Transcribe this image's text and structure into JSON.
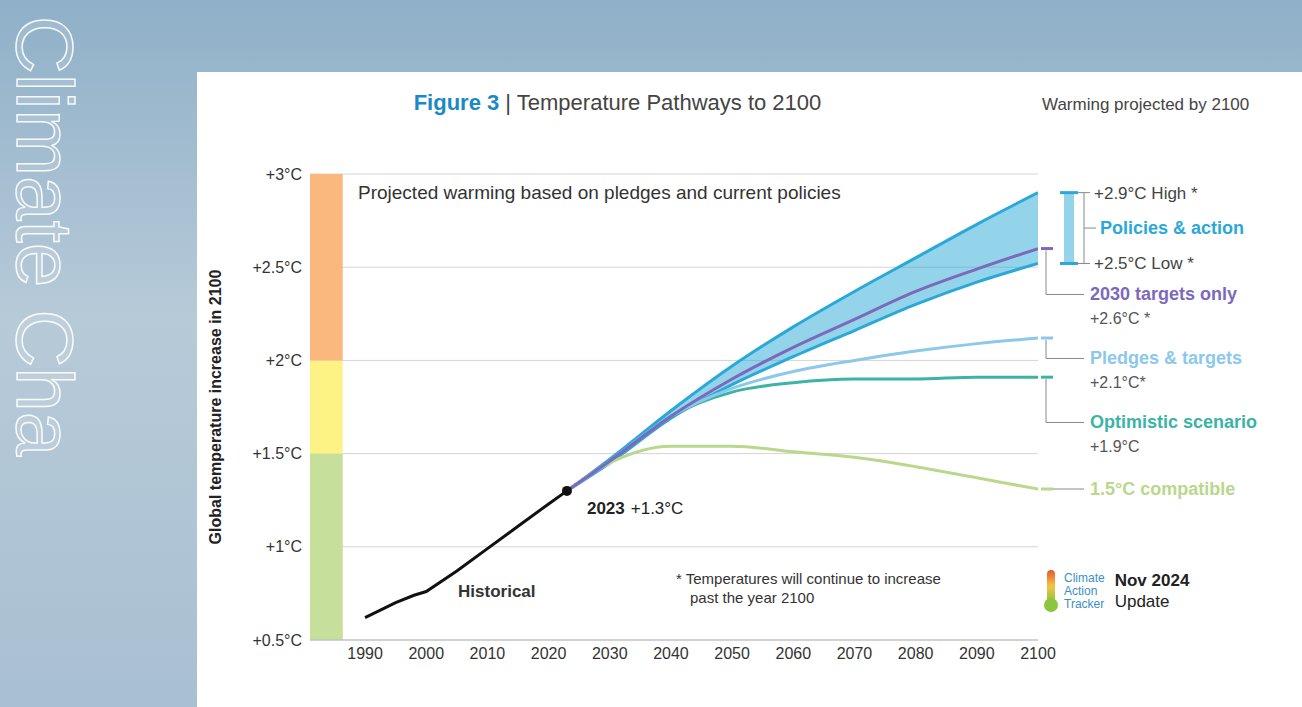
{
  "chart_data": {
    "type": "line",
    "title": "Figure 3 | Temperature Pathways to 2100",
    "subtitle": "Projected warming based on pledges and current policies",
    "y_label": "Global temperature increase in 2100",
    "legend_title": "Warming projected by 2100",
    "footnote": "* Temperatures will continue to increase past the year 2100",
    "source": "Climate Action Tracker",
    "date": "Nov 2024",
    "date_note": "Update",
    "background_text": "Climate Cha",
    "x": [
      1990,
      1995,
      1998,
      2000,
      2005,
      2010,
      2015,
      2020,
      2023,
      2030,
      2040,
      2050,
      2060,
      2070,
      2080,
      2090,
      2100
    ],
    "xlim": [
      1981,
      2100
    ],
    "xticks": [
      1990,
      2000,
      2010,
      2020,
      2030,
      2040,
      2050,
      2060,
      2070,
      2080,
      2090,
      2100
    ],
    "ylim": [
      0.5,
      3
    ],
    "yticks": [
      {
        "value": 0.5,
        "label": "+0.5°C"
      },
      {
        "value": 1,
        "label": "+1°C"
      },
      {
        "value": 1.5,
        "label": "+1.5°C"
      },
      {
        "value": 2,
        "label": "+2°C"
      },
      {
        "value": 2.5,
        "label": "+2.5°C"
      },
      {
        "value": 3,
        "label": "+3°C"
      }
    ],
    "grid": true,
    "bands": [
      {
        "from": 0.5,
        "to": 1.5,
        "color": "#c6df9a"
      },
      {
        "from": 1.5,
        "to": 2,
        "color": "#fdf384"
      },
      {
        "from": 2,
        "to": 3,
        "color": "#fbb87e"
      }
    ],
    "annotations": [
      {
        "x": 2023,
        "y": 1.3,
        "label": "2023",
        "text": "+1.3°C"
      }
    ],
    "series": [
      {
        "name": "Historical",
        "color": "#111111",
        "values": [
          0.62,
          0.7,
          0.74,
          0.76,
          0.87,
          0.99,
          1.11,
          1.23,
          1.3,
          null,
          null,
          null,
          null,
          null,
          null,
          null,
          null
        ]
      },
      {
        "name": "Policies & action",
        "type": "range",
        "color": "#2aa9d8",
        "low": [
          null,
          null,
          null,
          null,
          null,
          null,
          null,
          null,
          1.3,
          1.45,
          1.69,
          1.87,
          2.02,
          2.16,
          2.3,
          2.42,
          2.52
        ],
        "high": [
          null,
          null,
          null,
          null,
          null,
          null,
          null,
          null,
          1.3,
          1.47,
          1.73,
          1.97,
          2.18,
          2.37,
          2.55,
          2.73,
          2.9
        ],
        "low_label": "+2.5°C Low *",
        "high_label": "+2.9°C High *"
      },
      {
        "name": "2030 targets only",
        "color": "#7c69bb",
        "values": [
          null,
          null,
          null,
          null,
          null,
          null,
          null,
          null,
          1.3,
          1.46,
          1.7,
          1.9,
          2.07,
          2.22,
          2.37,
          2.49,
          2.6
        ],
        "end_label": "+2.6°C *"
      },
      {
        "name": "Pledges & targets",
        "color": "#8cc8ea",
        "values": [
          null,
          null,
          null,
          null,
          null,
          null,
          null,
          null,
          1.3,
          1.46,
          1.7,
          1.85,
          1.94,
          2.0,
          2.05,
          2.09,
          2.12
        ],
        "end_label": "+2.1°C*"
      },
      {
        "name": "Optimistic scenario",
        "color": "#3bb3a6",
        "values": [
          null,
          null,
          null,
          null,
          null,
          null,
          null,
          null,
          1.3,
          1.46,
          1.7,
          1.83,
          1.88,
          1.9,
          1.9,
          1.91,
          1.91
        ],
        "end_label": "+1.9°C"
      },
      {
        "name": "1.5°C compatible",
        "color": "#b9d88c",
        "values": [
          null,
          null,
          null,
          null,
          null,
          null,
          null,
          null,
          1.3,
          1.45,
          1.54,
          1.54,
          1.51,
          1.48,
          1.43,
          1.37,
          1.31
        ]
      }
    ]
  }
}
